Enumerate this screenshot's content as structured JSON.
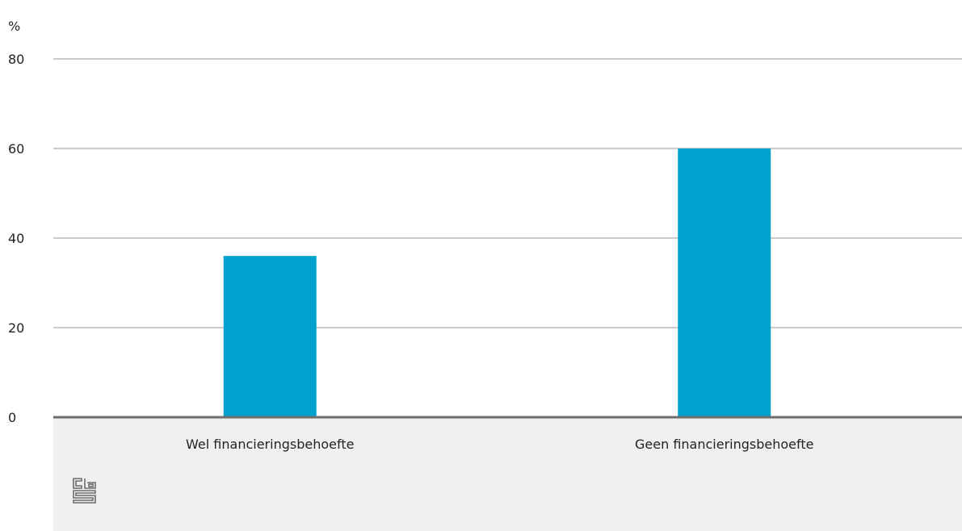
{
  "chart_data": {
    "type": "bar",
    "categories": [
      "Wel financieringsbehoefte",
      "Geen financieringsbehoefte"
    ],
    "values": [
      36,
      60
    ],
    "ylabel": "%",
    "ylim": [
      0,
      80
    ],
    "yticks": [
      "0",
      "20",
      "40",
      "60",
      "80"
    ],
    "grid": true,
    "colors": {
      "bar": "#00a1cd",
      "grid": "#9a9a9a",
      "baseline": "#6e6e6e",
      "footer_bg": "#efefef",
      "logo": "#6b6b6b"
    }
  },
  "logo": {
    "icon": "cbs-logo-icon"
  }
}
